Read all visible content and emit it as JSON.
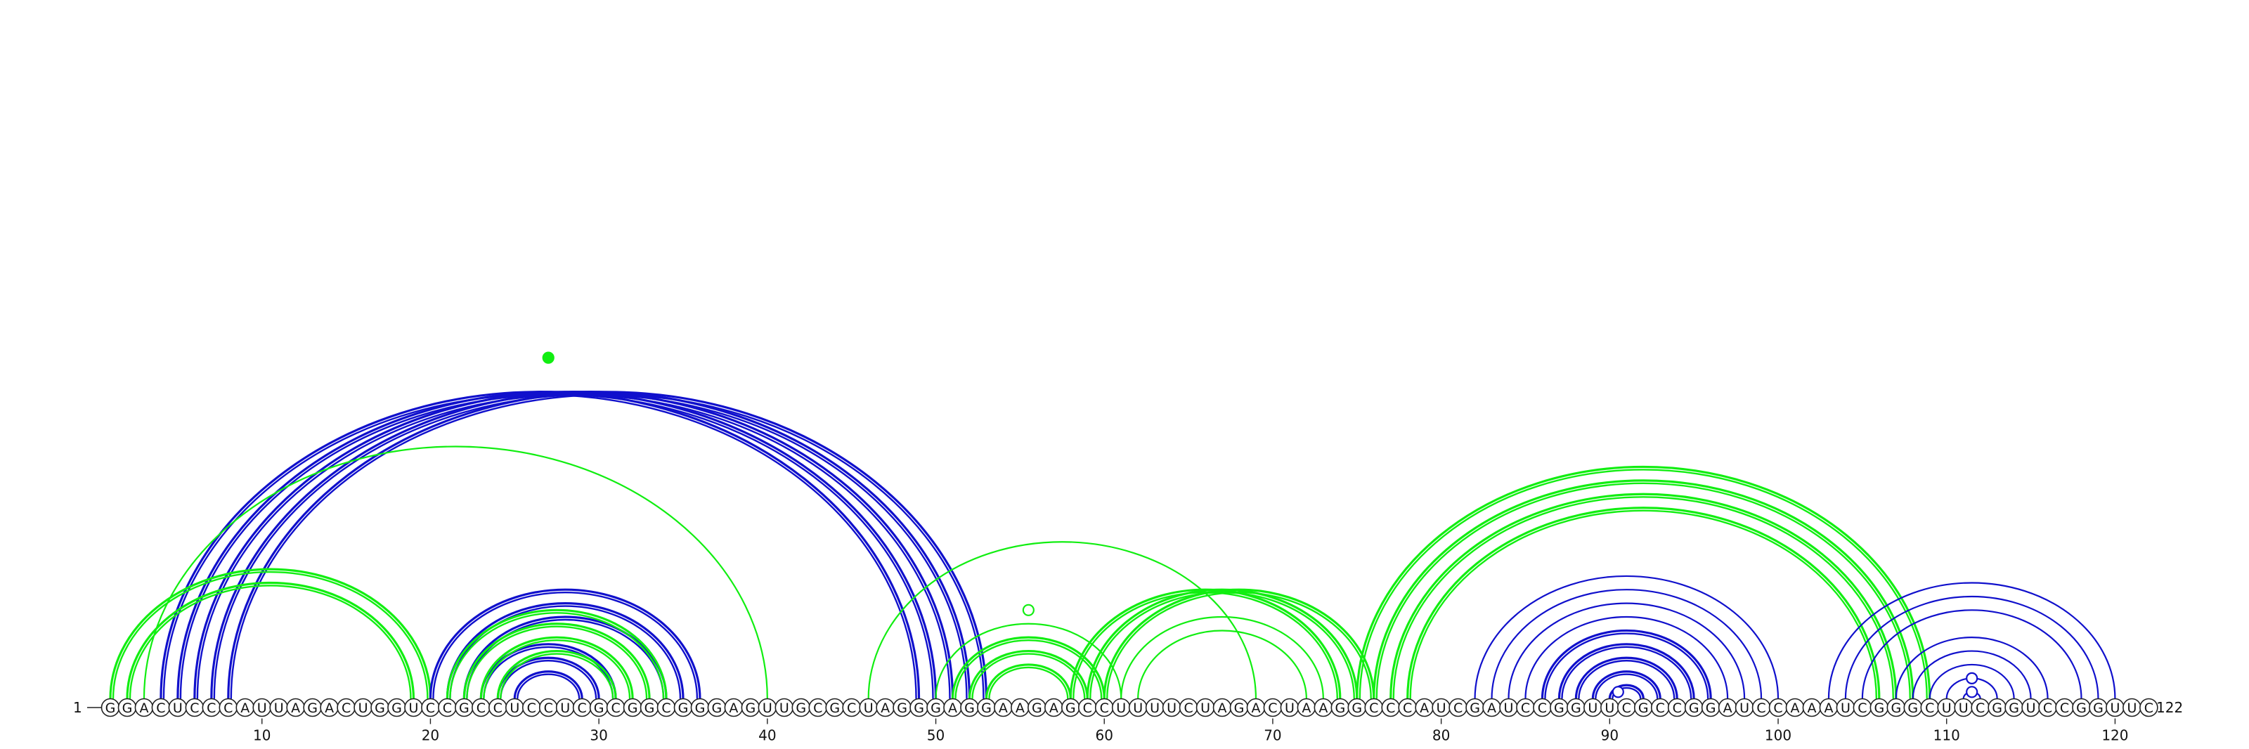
{
  "sequence": "GGACUCCCAUUAGACUGGUCCGCCUCCUCGCGGCGGGAGUUGCGCUAGGGAGGAAGAGCCUUUUCUAGACUAAGGCCCAUCGAUCCGGUUCGCCGGAUCCAAAUCGGGCUUCGGUCCGGUUC",
  "start_label": "1",
  "end_label": "122",
  "tick_labels": [
    "10",
    "20",
    "30",
    "40",
    "50",
    "60",
    "70",
    "80",
    "90",
    "100",
    "110",
    "120"
  ],
  "colors": {
    "blue": "#1010cc",
    "green": "#11ee11"
  },
  "arc_groups": [
    {
      "color": "blue",
      "double": true,
      "pairs": [
        [
          4,
          49
        ],
        [
          5,
          50
        ],
        [
          6,
          51
        ],
        [
          7,
          52
        ],
        [
          8,
          53
        ]
      ]
    },
    {
      "color": "green",
      "double": false,
      "pairs": [
        [
          2,
          52
        ]
      ],
      "marker": "dot"
    },
    {
      "color": "green",
      "double": false,
      "pairs": [
        [
          3,
          40
        ]
      ]
    },
    {
      "color": "green",
      "double": true,
      "pairs": [
        [
          1,
          20
        ],
        [
          2,
          19
        ]
      ]
    },
    {
      "color": "blue",
      "double": true,
      "pairs": [
        [
          20,
          36
        ],
        [
          21,
          35
        ],
        [
          22,
          34
        ],
        [
          23,
          31
        ],
        [
          24,
          30
        ],
        [
          25,
          29
        ]
      ]
    },
    {
      "color": "green",
      "double": true,
      "pairs": [
        [
          21,
          34
        ],
        [
          22,
          33
        ],
        [
          23,
          32
        ],
        [
          24,
          31
        ]
      ]
    },
    {
      "color": "green",
      "double": false,
      "pairs": [
        [
          46,
          69
        ]
      ]
    },
    {
      "color": "green",
      "double": false,
      "pairs": [
        [
          49,
          62
        ]
      ],
      "marker": "circle"
    },
    {
      "color": "green",
      "double": false,
      "pairs": [
        [
          50,
          61
        ]
      ]
    },
    {
      "color": "green",
      "double": true,
      "pairs": [
        [
          51,
          60
        ],
        [
          52,
          59
        ],
        [
          53,
          58
        ]
      ]
    },
    {
      "color": "green",
      "double": true,
      "pairs": [
        [
          58,
          74
        ],
        [
          59,
          75
        ],
        [
          60,
          76
        ]
      ]
    },
    {
      "color": "green",
      "double": false,
      "pairs": [
        [
          61,
          73
        ],
        [
          62,
          72
        ]
      ]
    },
    {
      "color": "green",
      "double": true,
      "pairs": [
        [
          75,
          109
        ],
        [
          76,
          108
        ],
        [
          77,
          107
        ],
        [
          78,
          106
        ]
      ]
    },
    {
      "color": "blue",
      "double": false,
      "pairs": [
        [
          82,
          100
        ],
        [
          83,
          99
        ],
        [
          84,
          98
        ],
        [
          85,
          97
        ]
      ]
    },
    {
      "color": "blue",
      "double": true,
      "pairs": [
        [
          86,
          96
        ],
        [
          87,
          95
        ],
        [
          88,
          94
        ],
        [
          89,
          93
        ],
        [
          90,
          92
        ]
      ]
    },
    {
      "color": "blue",
      "double": false,
      "pairs": [
        [
          90,
          91
        ]
      ],
      "marker": "circle"
    },
    {
      "color": "blue",
      "double": false,
      "pairs": [
        [
          103,
          120
        ],
        [
          104,
          119
        ],
        [
          105,
          118
        ]
      ]
    },
    {
      "color": "blue",
      "double": false,
      "pairs": [
        [
          107,
          116
        ],
        [
          108,
          115
        ],
        [
          109,
          114
        ],
        [
          110,
          113
        ],
        [
          111,
          112
        ]
      ]
    },
    {
      "color": "blue",
      "double": false,
      "pairs": [
        [
          111,
          112
        ],
        [
          110,
          113
        ]
      ],
      "marker": "circle"
    }
  ]
}
